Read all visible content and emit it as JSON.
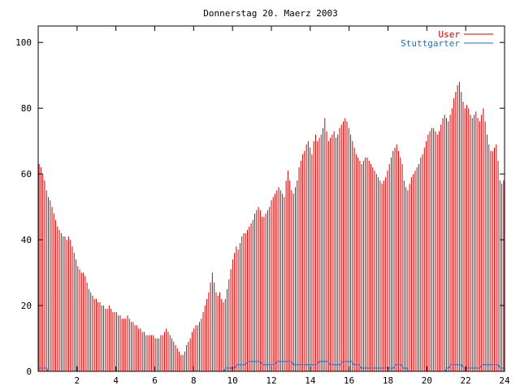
{
  "chart_data": {
    "type": "bar",
    "title": "Donnerstag 20. Maerz 2003",
    "xlabel": "",
    "ylabel": "",
    "xlim": [
      0,
      24
    ],
    "ylim": [
      0,
      105
    ],
    "x_ticks": [
      "2",
      "4",
      "6",
      "8",
      "10",
      "12",
      "14",
      "16",
      "18",
      "20",
      "22",
      "24"
    ],
    "y_ticks": [
      "0",
      "20",
      "40",
      "60",
      "80",
      "100"
    ],
    "legend_position": "top-right",
    "grid": false,
    "sampling_interval_hours": 0.0833,
    "series": [
      {
        "name": "User",
        "color": "#d40000",
        "style": "impulses",
        "values": [
          63,
          62,
          60,
          58,
          55,
          53,
          52,
          50,
          48,
          46,
          44,
          43,
          42,
          41,
          41,
          40,
          41,
          40,
          38,
          36,
          34,
          32,
          31,
          30,
          30,
          29,
          27,
          25,
          24,
          23,
          22,
          22,
          21,
          21,
          20,
          20,
          19,
          19,
          20,
          19,
          18,
          18,
          18,
          17,
          17,
          16,
          16,
          16,
          17,
          16,
          15,
          15,
          14,
          14,
          13,
          13,
          12,
          12,
          11,
          11,
          11,
          11,
          11,
          10,
          10,
          10,
          11,
          11,
          12,
          13,
          12,
          11,
          10,
          9,
          8,
          7,
          6,
          5,
          5,
          6,
          8,
          9,
          10,
          12,
          13,
          14,
          14,
          15,
          16,
          18,
          20,
          22,
          24,
          27,
          30,
          27,
          24,
          23,
          24,
          22,
          21,
          22,
          25,
          28,
          31,
          34,
          36,
          38,
          37,
          39,
          41,
          42,
          42,
          43,
          44,
          45,
          46,
          48,
          49,
          50,
          49,
          47,
          47,
          48,
          49,
          50,
          52,
          53,
          54,
          55,
          56,
          55,
          54,
          53,
          58,
          61,
          58,
          55,
          54,
          56,
          58,
          62,
          64,
          66,
          67,
          69,
          70,
          68,
          66,
          70,
          72,
          70,
          71,
          72,
          74,
          77,
          73,
          70,
          71,
          72,
          73,
          71,
          72,
          74,
          75,
          76,
          77,
          76,
          74,
          72,
          70,
          68,
          66,
          65,
          64,
          63,
          64,
          65,
          65,
          64,
          63,
          62,
          61,
          60,
          59,
          58,
          57,
          58,
          59,
          61,
          63,
          65,
          67,
          68,
          69,
          67,
          65,
          63,
          58,
          56,
          55,
          57,
          59,
          60,
          61,
          62,
          63,
          65,
          66,
          68,
          70,
          72,
          73,
          74,
          74,
          73,
          72,
          73,
          75,
          77,
          78,
          77,
          76,
          78,
          80,
          83,
          85,
          87,
          88,
          85,
          82,
          80,
          81,
          80,
          78,
          77,
          78,
          79,
          77,
          76,
          78,
          80,
          76,
          72,
          69,
          67,
          67,
          68,
          69,
          64,
          58,
          57,
          58
        ]
      },
      {
        "name": "Stuttgarter",
        "color": "#1a6fc0",
        "style": "lines",
        "values": [
          1,
          1,
          1,
          1,
          1,
          0,
          0,
          0,
          0,
          0,
          0,
          0,
          0,
          0,
          0,
          0,
          0,
          0,
          0,
          0,
          0,
          0,
          0,
          0,
          0,
          0,
          0,
          0,
          0,
          0,
          0,
          0,
          0,
          0,
          0,
          0,
          0,
          0,
          0,
          0,
          0,
          0,
          0,
          0,
          0,
          0,
          0,
          0,
          0,
          0,
          0,
          0,
          0,
          0,
          0,
          0,
          0,
          0,
          0,
          0,
          0,
          0,
          0,
          0,
          0,
          0,
          0,
          0,
          0,
          0,
          0,
          0,
          0,
          0,
          0,
          0,
          0,
          0,
          0,
          0,
          0,
          0,
          0,
          0,
          0,
          0,
          0,
          0,
          0,
          0,
          0,
          0,
          0,
          0,
          0,
          0,
          0,
          0,
          0,
          0,
          0,
          0,
          1,
          1,
          1,
          1,
          1,
          1,
          2,
          2,
          2,
          2,
          2,
          2,
          3,
          3,
          3,
          3,
          3,
          3,
          3,
          3,
          2,
          2,
          2,
          2,
          2,
          2,
          2,
          2,
          3,
          3,
          3,
          3,
          3,
          3,
          3,
          3,
          3,
          2,
          2,
          2,
          2,
          2,
          2,
          2,
          2,
          2,
          2,
          2,
          2,
          2,
          2,
          3,
          3,
          3,
          3,
          3,
          3,
          2,
          2,
          2,
          2,
          2,
          2,
          2,
          3,
          3,
          3,
          3,
          3,
          3,
          2,
          2,
          2,
          2,
          1,
          1,
          1,
          1,
          1,
          1,
          1,
          1,
          1,
          1,
          1,
          1,
          1,
          1,
          1,
          1,
          1,
          1,
          1,
          2,
          2,
          2,
          2,
          1,
          1,
          1,
          0,
          0,
          0,
          0,
          0,
          0,
          0,
          0,
          0,
          0,
          0,
          0,
          0,
          0,
          0,
          0,
          0,
          0,
          0,
          0,
          0,
          1,
          1,
          2,
          2,
          2,
          2,
          2,
          2,
          2,
          1,
          1,
          1,
          1,
          1,
          1,
          1,
          1,
          1,
          1,
          2,
          2,
          2,
          2,
          2,
          2,
          2,
          2,
          2,
          2,
          1,
          1,
          1
        ]
      }
    ]
  }
}
